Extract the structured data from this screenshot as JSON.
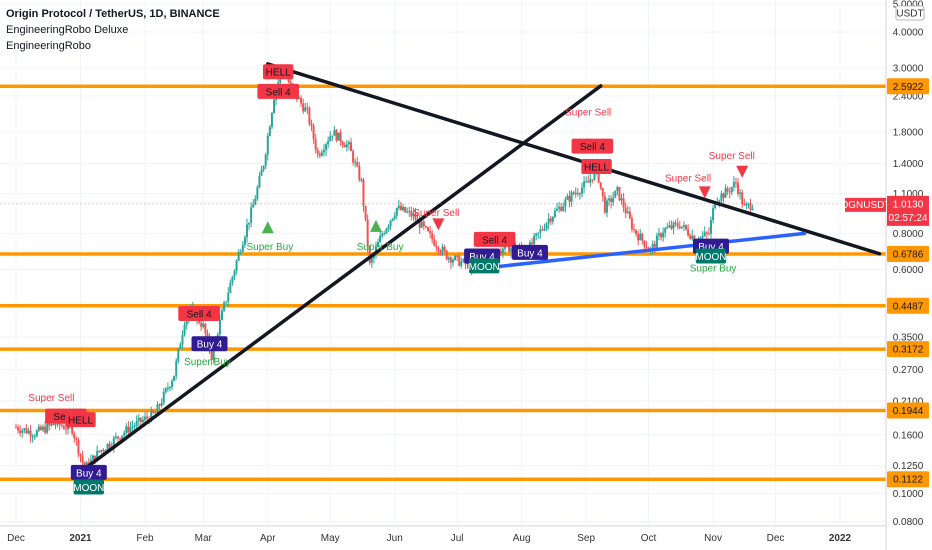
{
  "legend": {
    "title": "Origin Protocol / TetherUS, 1D, BINANCE",
    "indicator1": "EngineeringRobo Deluxe",
    "indicator2": "EngineeringRobo"
  },
  "chart_data": {
    "type": "candlestick",
    "symbol": "OGNUSDT",
    "currency": "USDT",
    "price_scale": "log",
    "ylim": [
      0.08,
      5.0
    ],
    "x_ticks": [
      "Dec",
      "2021",
      "Feb",
      "Mar",
      "Apr",
      "May",
      "Jun",
      "Jul",
      "Aug",
      "Sep",
      "Oct",
      "Nov",
      "Dec",
      "2022"
    ],
    "y_ticks": [
      5.0,
      4.0,
      3.0,
      2.4,
      1.8,
      1.4,
      1.1,
      0.8,
      0.6,
      0.35,
      0.27,
      0.21,
      0.16,
      0.125,
      0.1,
      0.08
    ],
    "y_tick_labels": [
      "5.0000",
      "4.0000",
      "3.0000",
      "2.4000",
      "1.8000",
      "1.4000",
      "1.1000",
      "0.8000",
      "0.6000",
      "0.3500",
      "0.2700",
      "0.2100",
      "0.1600",
      "0.1250",
      "0.1000",
      "0.0800"
    ],
    "last_price": {
      "symbol": "OGNUSDT",
      "value": "1.0130",
      "countdown": "02:57:24"
    },
    "levels": [
      {
        "value": 2.5922,
        "label": "2.5922"
      },
      {
        "value": 0.6786,
        "label": "0.6786"
      },
      {
        "value": 0.4487,
        "label": "0.4487"
      },
      {
        "value": 0.3172,
        "label": "0.3172"
      },
      {
        "value": 0.1944,
        "label": "0.1944"
      },
      {
        "value": 0.1122,
        "label": "0.1122"
      }
    ],
    "trendlines": [
      {
        "color": "#131722",
        "from": {
          "date": "2021-01-05",
          "price": 0.125
        },
        "to": {
          "date": "2021-09-08",
          "price": 2.6
        }
      },
      {
        "color": "#131722",
        "from": {
          "date": "2021-04-01",
          "price": 3.1
        },
        "to": {
          "date": "2022-01-20",
          "price": 0.68
        }
      },
      {
        "color": "#2962ff",
        "from": {
          "date": "2021-07-17",
          "price": 0.61
        },
        "to": {
          "date": "2021-12-15",
          "price": 0.8
        }
      }
    ],
    "signals": [
      {
        "text": "Super Sell",
        "kind": "text-sell",
        "date": "2020-12-18",
        "price": 0.21
      },
      {
        "text": "Sell 4",
        "kind": "box-sell",
        "date": "2020-12-25",
        "price": 0.185
      },
      {
        "text": "HELL",
        "kind": "box-sell",
        "date": "2021-01-01",
        "price": 0.18
      },
      {
        "text": "Buy 4",
        "kind": "box-buy",
        "date": "2021-01-05",
        "price": 0.118
      },
      {
        "text": "MOON",
        "kind": "box-moon",
        "date": "2021-01-05",
        "price": 0.105
      },
      {
        "text": "Sell 4",
        "kind": "box-sell",
        "date": "2021-02-27",
        "price": 0.42
      },
      {
        "text": "Buy 4",
        "kind": "box-buy",
        "date": "2021-03-04",
        "price": 0.33
      },
      {
        "text": "Super Buy",
        "kind": "text-buy",
        "date": "2021-03-03",
        "price": 0.28
      },
      {
        "text": "HELL",
        "kind": "box-sell",
        "date": "2021-04-06",
        "price": 2.9
      },
      {
        "text": "Sell 4",
        "kind": "box-sell",
        "date": "2021-04-06",
        "price": 2.48
      },
      {
        "text": "Super Buy",
        "kind": "text-buy",
        "date": "2021-04-02",
        "price": 0.7
      },
      {
        "text": "Super Buy",
        "kind": "text-buy",
        "date": "2021-05-25",
        "price": 0.7
      },
      {
        "text": "Super Sell",
        "kind": "text-sell",
        "date": "2021-06-21",
        "price": 0.92
      },
      {
        "text": "Sell 4",
        "kind": "box-sell",
        "date": "2021-07-19",
        "price": 0.76
      },
      {
        "text": "Buy 4",
        "kind": "box-buy",
        "date": "2021-07-13",
        "price": 0.665
      },
      {
        "text": "MOON",
        "kind": "box-moon",
        "date": "2021-07-14",
        "price": 0.615
      },
      {
        "text": "Buy 4",
        "kind": "box-buy",
        "date": "2021-08-05",
        "price": 0.685
      },
      {
        "text": "Super Sell",
        "kind": "text-sell",
        "date": "2021-09-02",
        "price": 2.05
      },
      {
        "text": "Sell 4",
        "kind": "box-sell",
        "date": "2021-09-04",
        "price": 1.6
      },
      {
        "text": "HELL",
        "kind": "box-sell",
        "date": "2021-09-06",
        "price": 1.36
      },
      {
        "text": "Super Sell",
        "kind": "text-sell",
        "date": "2021-10-20",
        "price": 1.21
      },
      {
        "text": "Super Sell",
        "kind": "text-sell",
        "date": "2021-11-10",
        "price": 1.45
      },
      {
        "text": "Buy 4",
        "kind": "box-buy",
        "date": "2021-10-31",
        "price": 0.72
      },
      {
        "text": "MOON",
        "kind": "box-moon",
        "date": "2021-10-31",
        "price": 0.665
      },
      {
        "text": "Super Buy",
        "kind": "text-buy",
        "date": "2021-11-01",
        "price": 0.59
      }
    ],
    "arrows": [
      {
        "dir": "up",
        "date": "2021-04-01",
        "price": 0.84
      },
      {
        "dir": "up",
        "date": "2021-05-23",
        "price": 0.85
      },
      {
        "dir": "down",
        "date": "2021-06-22",
        "price": 0.86
      },
      {
        "dir": "down",
        "date": "2021-10-28",
        "price": 1.11
      },
      {
        "dir": "down",
        "date": "2021-11-15",
        "price": 1.31
      }
    ],
    "candles": []
  }
}
